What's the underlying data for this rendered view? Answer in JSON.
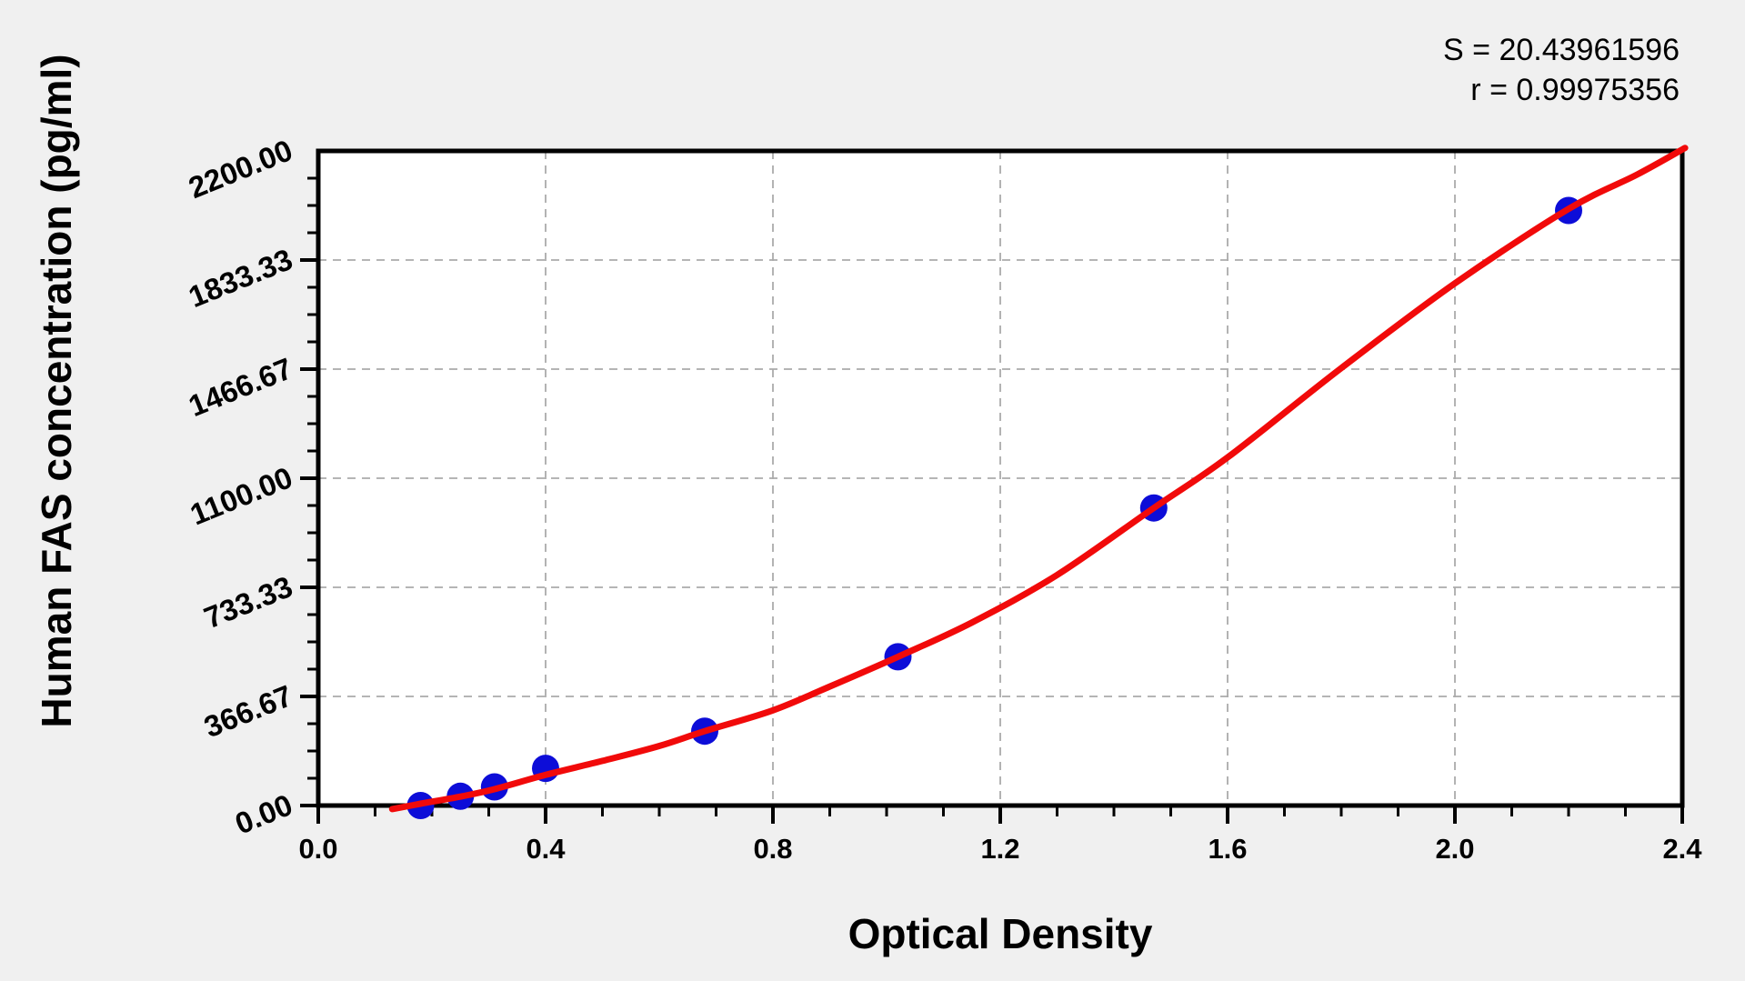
{
  "chart_data": {
    "type": "scatter",
    "title": "",
    "xlabel": "Optical Density",
    "ylabel": "Human FAS concentration (pg/ml)",
    "annotations": {
      "s": "S = 20.43961596",
      "r": "r = 0.99975356"
    },
    "x_axis": {
      "min": 0.0,
      "max": 2.4,
      "major_tick_step": 0.4,
      "minor_tick_step": 0.1,
      "tick_labels": [
        "0.0",
        "0.4",
        "0.8",
        "1.2",
        "1.6",
        "2.0",
        "2.4"
      ]
    },
    "y_axis": {
      "min": 0.0,
      "max": 2200.0,
      "major_tick_step": 366.6667,
      "minor_tick_step": 91.6667,
      "tick_labels": [
        "0.00",
        "366.67",
        "733.33",
        "1100.00",
        "1466.67",
        "1833.33",
        "2200.00"
      ]
    },
    "grid": {
      "style": "dashed",
      "vertical_at": [
        0.4,
        0.8,
        1.2,
        1.6,
        2.0
      ],
      "horizontal_at": [
        366.67,
        733.33,
        1100.0,
        1466.67,
        1833.33
      ]
    },
    "legend": "none",
    "series": [
      {
        "name": "standard-points",
        "type": "scatter",
        "points": [
          {
            "x": 0.18,
            "y": 0
          },
          {
            "x": 0.25,
            "y": 31.25
          },
          {
            "x": 0.31,
            "y": 62.5
          },
          {
            "x": 0.4,
            "y": 125
          },
          {
            "x": 0.68,
            "y": 250
          },
          {
            "x": 1.02,
            "y": 500
          },
          {
            "x": 1.47,
            "y": 1000
          },
          {
            "x": 2.2,
            "y": 2000
          }
        ]
      },
      {
        "name": "fitted-curve",
        "type": "line",
        "points": [
          [
            0.13,
            -12
          ],
          [
            0.18,
            6
          ],
          [
            0.25,
            30
          ],
          [
            0.31,
            55
          ],
          [
            0.4,
            103
          ],
          [
            0.5,
            150
          ],
          [
            0.6,
            200
          ],
          [
            0.68,
            250
          ],
          [
            0.8,
            320
          ],
          [
            0.9,
            400
          ],
          [
            1.02,
            500
          ],
          [
            1.15,
            615
          ],
          [
            1.3,
            775
          ],
          [
            1.47,
            1000
          ],
          [
            1.6,
            1170
          ],
          [
            1.8,
            1470
          ],
          [
            2.0,
            1755
          ],
          [
            2.2,
            2005
          ],
          [
            2.32,
            2120
          ],
          [
            2.405,
            2210
          ]
        ]
      }
    ],
    "colors": {
      "curve": "#f10a0a",
      "points": "#0d0dd8",
      "grid": "#ababab",
      "axis": "#000000",
      "plot_bg": "#ffffff",
      "page_bg": "#f0f0f0",
      "text": "#000000"
    }
  }
}
